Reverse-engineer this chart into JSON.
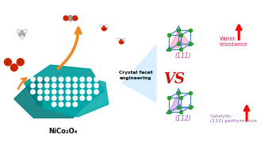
{
  "background_color": "#ffffff",
  "vs_text": "VS",
  "vs_color": "#cc1111",
  "crystal_facet_text": "Crystal facet\nengineering",
  "nico_label": "NiCo₂O₄",
  "label_111": "(111)",
  "label_112": "(112)",
  "water_text": "Water\nresistance",
  "catalytic_text": "Catalytic\n(112) performance",
  "water_label_color": "#ee1166",
  "purple_color": "#9955bb",
  "cube_color": "#4488cc",
  "node_color": "#22aa22",
  "arrow_color": "#ff0000",
  "teal_dark": "#007a7a",
  "teal_mid": "#009999",
  "teal_light": "#00bbbb",
  "orange_color": "#ee8822",
  "pink_facet": "#ff99bb",
  "purple_facet": "#bb88ee",
  "beam_color": "#aaddff",
  "red_mol": "#cc2200",
  "gray_mol": "#999999",
  "white_mol": "#eeeeee"
}
